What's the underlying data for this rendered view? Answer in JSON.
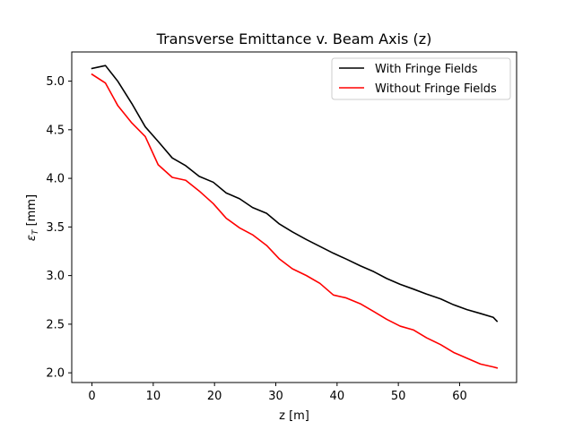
{
  "chart_data": {
    "type": "line",
    "title": "Transverse Emittance v. Beam Axis (z)",
    "xlabel": "z [m]",
    "ylabel_symbol": "ε",
    "ylabel_subscript": "T",
    "ylabel_unit": " [mm]",
    "xlim": [
      -3.3,
      69.3
    ],
    "ylim": [
      1.9,
      5.3
    ],
    "xticks": [
      0,
      10,
      20,
      30,
      40,
      50,
      60
    ],
    "xtick_labels": [
      "0",
      "10",
      "20",
      "30",
      "40",
      "50",
      "60"
    ],
    "yticks": [
      2.0,
      2.5,
      3.0,
      3.5,
      4.0,
      4.5,
      5.0
    ],
    "ytick_labels": [
      "2.0",
      "2.5",
      "3.0",
      "3.5",
      "4.0",
      "4.5",
      "5.0"
    ],
    "grid": false,
    "legend_position": "top-right",
    "series": [
      {
        "name": "With Fringe Fields",
        "color": "#000000",
        "x": [
          0,
          2.2,
          4.2,
          6.5,
          8.7,
          10.8,
          13.1,
          15.3,
          17.5,
          19.8,
          21.9,
          24.1,
          26.2,
          28.5,
          30.6,
          32.7,
          35.0,
          37.2,
          39.4,
          41.5,
          43.8,
          46.0,
          48.1,
          50.3,
          52.5,
          54.6,
          56.9,
          59.0,
          61.2,
          63.4,
          65.5,
          66.1
        ],
        "y": [
          5.13,
          5.16,
          5.0,
          4.77,
          4.53,
          4.38,
          4.21,
          4.13,
          4.02,
          3.96,
          3.85,
          3.79,
          3.7,
          3.64,
          3.53,
          3.45,
          3.37,
          3.3,
          3.23,
          3.17,
          3.1,
          3.04,
          2.97,
          2.91,
          2.86,
          2.81,
          2.76,
          2.7,
          2.65,
          2.61,
          2.57,
          2.53
        ]
      },
      {
        "name": "Without Fringe Fields",
        "color": "#ff0000",
        "x": [
          0,
          2.2,
          4.2,
          6.5,
          8.7,
          10.8,
          13.1,
          15.3,
          17.5,
          19.8,
          21.9,
          24.1,
          26.2,
          28.5,
          30.6,
          32.7,
          35.0,
          37.2,
          39.4,
          41.5,
          43.8,
          46.0,
          48.1,
          50.3,
          52.5,
          54.6,
          56.9,
          59.0,
          61.2,
          63.4,
          65.5,
          66.1
        ],
        "y": [
          5.07,
          4.98,
          4.75,
          4.57,
          4.43,
          4.14,
          4.01,
          3.98,
          3.87,
          3.74,
          3.59,
          3.49,
          3.42,
          3.31,
          3.17,
          3.07,
          3.0,
          2.92,
          2.8,
          2.77,
          2.71,
          2.63,
          2.55,
          2.48,
          2.44,
          2.36,
          2.29,
          2.21,
          2.15,
          2.09,
          2.06,
          2.05
        ]
      }
    ]
  }
}
